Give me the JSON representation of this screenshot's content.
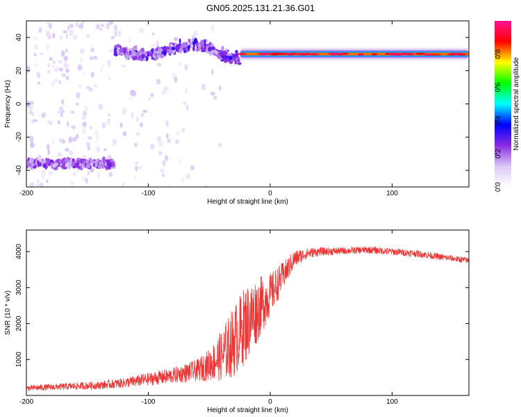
{
  "title": "GN05.2025.131.21.36.G01",
  "chart_data": [
    {
      "type": "heatmap",
      "xlabel": "Height of straight line (km)",
      "ylabel": "Frequency (Hz)",
      "xlim": [
        -200,
        163
      ],
      "ylim": [
        -50,
        50
      ],
      "x_ticks": [
        -200,
        -100,
        0,
        100
      ],
      "x_tick_labels": [
        "-200",
        "-100",
        "0",
        "100"
      ],
      "y_ticks": [
        -40,
        -20,
        0,
        20,
        40
      ],
      "y_tick_labels": [
        "-40",
        "-20",
        "0",
        "20",
        "40"
      ],
      "colorbar": {
        "label": "Normalized spectral amplitude",
        "range": [
          0,
          1
        ],
        "ticks": [
          0.0,
          0.2,
          0.4,
          0.6,
          0.8
        ],
        "tick_labels": [
          "0.0",
          "0.2",
          "0.4",
          "0.6",
          "0.8"
        ],
        "colormap": "rainbow",
        "stops": [
          "#ffffff",
          "#d9c8f5",
          "#8a2be2",
          "#0000ff",
          "#00ffff",
          "#00ff00",
          "#ffff00",
          "#ff0000",
          "#ff1493"
        ]
      },
      "features": [
        {
          "name": "lower band",
          "x_range": [
            -200,
            -127
          ],
          "frequency": -36,
          "amplitude": 0.25
        },
        {
          "name": "upper band",
          "x_range": [
            -127,
            -25
          ],
          "frequency": 32,
          "amplitude": 0.3
        },
        {
          "name": "steady tone",
          "x_range": [
            -25,
            163
          ],
          "frequency": 30,
          "amplitude": 0.9
        }
      ],
      "grid": false
    },
    {
      "type": "line",
      "xlabel": "Height of straight line (km)",
      "ylabel": "SNR (10 * v/v)",
      "xlim": [
        -200,
        163
      ],
      "ylim": [
        0,
        4600
      ],
      "x_ticks": [
        -200,
        -100,
        0,
        100
      ],
      "x_tick_labels": [
        "-200",
        "-100",
        "0",
        "100"
      ],
      "y_ticks": [
        1000,
        2000,
        3000,
        4000
      ],
      "y_tick_labels": [
        "1000",
        "2000",
        "3000",
        "4000"
      ],
      "series_color": "#ee3333",
      "grid": false,
      "series": [
        {
          "x": [
            -200,
            -180,
            -160,
            -140,
            -120,
            -100,
            -80,
            -60,
            -50,
            -40,
            -30,
            -20,
            -10,
            0,
            10,
            20,
            30,
            40,
            60,
            80,
            100,
            120,
            140,
            163
          ],
          "values": [
            200,
            230,
            260,
            280,
            350,
            450,
            550,
            700,
            850,
            1100,
            1500,
            2000,
            2400,
            2800,
            3300,
            3800,
            3950,
            4000,
            4020,
            4050,
            4000,
            3950,
            3850,
            3750
          ],
          "noise": [
            80,
            90,
            100,
            110,
            140,
            180,
            220,
            300,
            450,
            700,
            1000,
            1100,
            900,
            600,
            400,
            250,
            150,
            120,
            100,
            100,
            100,
            100,
            90,
            90
          ]
        }
      ]
    }
  ]
}
